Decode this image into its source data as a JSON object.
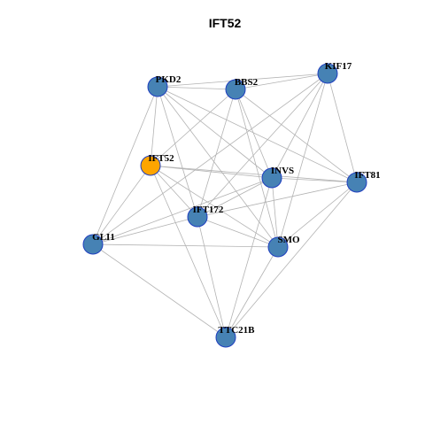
{
  "title": "IFT52",
  "nodes": [
    {
      "label": "PKD2",
      "color": "#4682b4"
    },
    {
      "label": "BBS2",
      "color": "#4682b4"
    },
    {
      "label": "KIF17",
      "color": "#4682b4"
    },
    {
      "label": "IFT52",
      "color": "#ffa500"
    },
    {
      "label": "INVS",
      "color": "#4682b4"
    },
    {
      "label": "IFT81",
      "color": "#4682b4"
    },
    {
      "label": "IFT172",
      "color": "#4682b4"
    },
    {
      "label": "GLI1",
      "color": "#4682b4"
    },
    {
      "label": "SMO",
      "color": "#4682b4"
    },
    {
      "label": "TTC21B",
      "color": "#4682b4"
    }
  ]
}
